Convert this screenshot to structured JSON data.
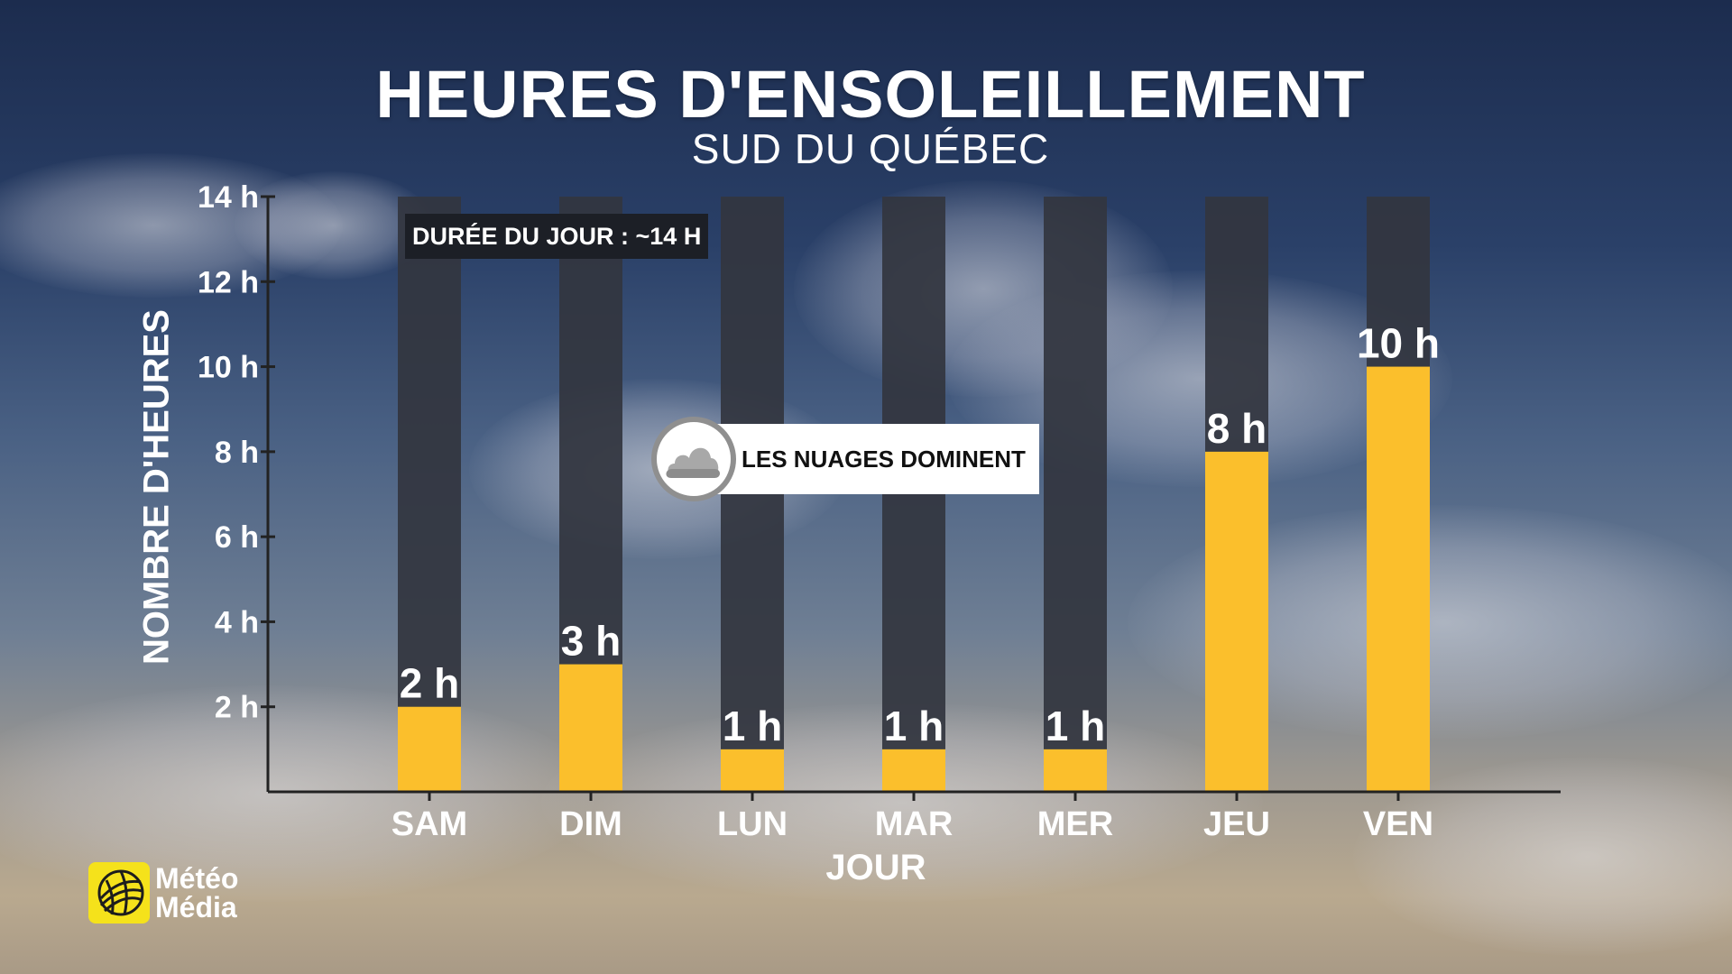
{
  "chart_data": {
    "type": "bar",
    "title": "HEURES D'ENSOLEILLEMENT",
    "subtitle": "SUD DU QUÉBEC",
    "xlabel": "JOUR",
    "ylabel": "NOMBRE D'HEURES",
    "categories": [
      "SAM",
      "DIM",
      "LUN",
      "MAR",
      "MER",
      "JEU",
      "VEN"
    ],
    "values": [
      2,
      3,
      1,
      1,
      1,
      8,
      10
    ],
    "value_labels": [
      "2 h",
      "3 h",
      "1 h",
      "1 h",
      "1 h",
      "8 h",
      "10 h"
    ],
    "background_bar_value": 14,
    "ylim": [
      0,
      14
    ],
    "yticks": [
      2,
      4,
      6,
      8,
      10,
      12,
      14
    ],
    "ytick_labels": [
      "2 h",
      "4 h",
      "6 h",
      "8 h",
      "10 h",
      "12 h",
      "14 h"
    ],
    "annotations": {
      "day_length": "DURÉE DU JOUR : ~14 H",
      "callout": "LES NUAGES DOMINENT"
    },
    "grid": false,
    "legend": "none",
    "colors": {
      "sun_bar": "#fbbf2c",
      "background_bar": "#33363f",
      "text": "#ffffff"
    }
  },
  "brand": {
    "line1": "Météo",
    "line2": "Média",
    "logo_color": "#f5e21b",
    "icon": "globe-logo-icon"
  },
  "callout_icon": "cloud-icon"
}
